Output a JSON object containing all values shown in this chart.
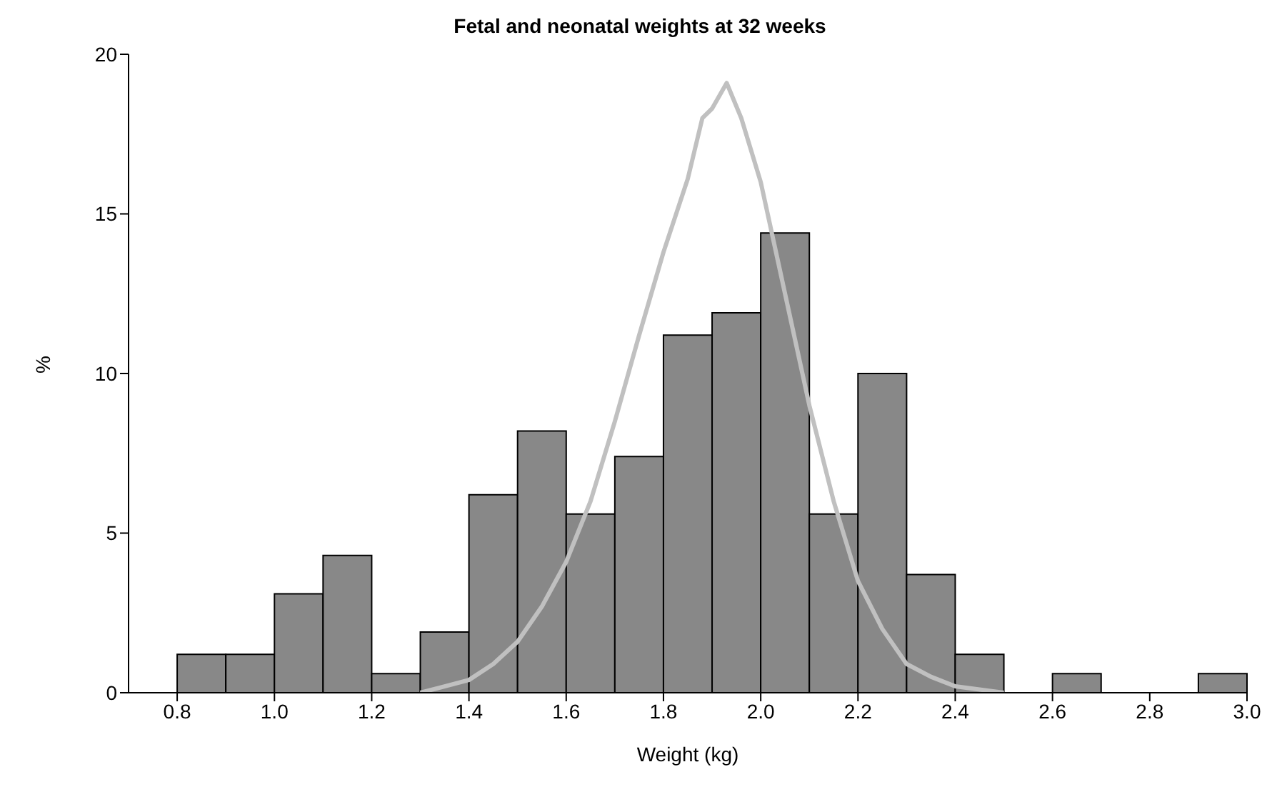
{
  "chart_data": {
    "type": "histogram",
    "title": "Fetal and neonatal weights at 32 weeks",
    "xlabel": "Weight (kg)",
    "ylabel": "%",
    "bins": [
      0.8,
      0.9,
      1.0,
      1.1,
      1.2,
      1.3,
      1.4,
      1.5,
      1.6,
      1.7,
      1.8,
      1.9,
      2.0,
      2.1,
      2.2,
      2.3,
      2.4,
      2.5,
      2.6,
      2.7,
      2.8,
      2.9,
      3.0
    ],
    "values": [
      1.2,
      1.2,
      3.1,
      4.3,
      0.6,
      1.9,
      6.2,
      8.2,
      5.6,
      7.4,
      11.2,
      11.9,
      14.4,
      5.6,
      10.0,
      3.7,
      1.2,
      0,
      0.6,
      0,
      0,
      0.6
    ],
    "color": "#888888",
    "series": [
      {
        "type": "line",
        "color": "#c0c0c0",
        "x": [
          1.3,
          1.35,
          1.4,
          1.45,
          1.5,
          1.55,
          1.6,
          1.65,
          1.7,
          1.75,
          1.8,
          1.85,
          1.88,
          1.9,
          1.93,
          1.96,
          2.0,
          2.05,
          2.1,
          2.15,
          2.2,
          2.25,
          2.3,
          2.35,
          2.4,
          2.5
        ],
        "values": [
          0,
          0.2,
          0.4,
          0.9,
          1.6,
          2.7,
          4.1,
          6.0,
          8.5,
          11.2,
          13.8,
          16.1,
          18.0,
          18.3,
          19.1,
          18.0,
          16.0,
          12.5,
          9.0,
          6.0,
          3.5,
          2.0,
          0.9,
          0.5,
          0.2,
          0
        ]
      }
    ],
    "xlim": [
      0.7,
      3.0
    ],
    "xticks": [
      0.8,
      {
        "value": 1,
        "label": "1.0"
      },
      1.2,
      1.4,
      1.6,
      1.8,
      {
        "value": 2,
        "label": "2.0"
      },
      2.2,
      2.4,
      2.6,
      2.8,
      {
        "value": 3,
        "label": "3.0"
      }
    ],
    "ylim": [
      0,
      20
    ],
    "yticks": [
      0,
      5,
      10,
      15,
      20
    ],
    "grid": false,
    "legend": false
  }
}
